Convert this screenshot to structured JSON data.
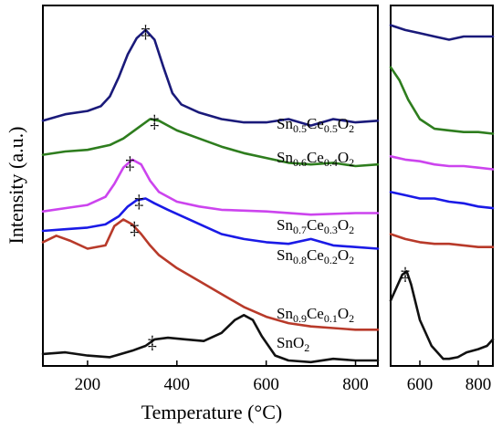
{
  "chart_data": [
    {
      "type": "line",
      "xlabel": "Temperature (°C)",
      "ylabel": "Intensity (a.u.)",
      "xlim": [
        100,
        850
      ],
      "xticks": [
        "200",
        "400",
        "600",
        "800"
      ],
      "y_ticks_shown": false,
      "marker_symbol": "‡",
      "series": [
        {
          "label_parts": [
            "Sn",
            "0.5",
            "Ce",
            "0.5",
            "O",
            "2"
          ],
          "color": "#1a1a7a",
          "x": [
            100,
            150,
            200,
            230,
            250,
            270,
            290,
            310,
            330,
            350,
            370,
            390,
            410,
            450,
            500,
            550,
            600,
            650,
            700,
            750,
            800,
            850
          ],
          "y": [
            0.695,
            0.715,
            0.725,
            0.74,
            0.77,
            0.83,
            0.9,
            0.95,
            0.975,
            0.945,
            0.86,
            0.78,
            0.745,
            0.72,
            0.7,
            0.69,
            0.69,
            0.7,
            0.68,
            0.7,
            0.69,
            0.695
          ],
          "markers": [
            330
          ]
        },
        {
          "label_parts": [
            "Sn",
            "0.6",
            "Ce",
            "0.4",
            "O",
            "2"
          ],
          "color": "#2e7d1e",
          "x": [
            100,
            150,
            200,
            250,
            280,
            300,
            320,
            340,
            360,
            380,
            400,
            450,
            500,
            550,
            600,
            650,
            700,
            750,
            800,
            850
          ],
          "y": [
            0.59,
            0.6,
            0.605,
            0.62,
            0.64,
            0.66,
            0.68,
            0.7,
            0.695,
            0.68,
            0.665,
            0.64,
            0.615,
            0.595,
            0.58,
            0.565,
            0.56,
            0.565,
            0.555,
            0.56
          ],
          "markers": [
            350
          ]
        },
        {
          "label_parts": [
            "Sn",
            "0.7",
            "Ce",
            "0.3",
            "O",
            "2"
          ],
          "color": "#cc44ee",
          "x": [
            100,
            150,
            200,
            240,
            260,
            280,
            300,
            320,
            340,
            360,
            400,
            450,
            500,
            600,
            700,
            800,
            850
          ],
          "y": [
            0.415,
            0.425,
            0.435,
            0.46,
            0.5,
            0.55,
            0.575,
            0.56,
            0.51,
            0.475,
            0.445,
            0.43,
            0.42,
            0.415,
            0.405,
            0.41,
            0.41
          ],
          "markers": [
            295
          ]
        },
        {
          "label_parts": [
            "Sn",
            "0.8",
            "Ce",
            "0.2",
            "O",
            "2"
          ],
          "color": "#1a1ae6",
          "x": [
            100,
            150,
            200,
            240,
            270,
            290,
            310,
            330,
            350,
            380,
            420,
            460,
            500,
            550,
            600,
            650,
            700,
            750,
            800,
            850
          ],
          "y": [
            0.355,
            0.36,
            0.365,
            0.375,
            0.4,
            0.43,
            0.45,
            0.455,
            0.44,
            0.42,
            0.395,
            0.37,
            0.345,
            0.33,
            0.32,
            0.315,
            0.33,
            0.31,
            0.305,
            0.3
          ],
          "markers": [
            315
          ]
        },
        {
          "label_parts": [
            "Sn",
            "0.9",
            "Ce",
            "0.1",
            "O",
            "2"
          ],
          "color": "#b83a2a",
          "x": [
            100,
            130,
            160,
            200,
            240,
            260,
            280,
            300,
            320,
            340,
            360,
            400,
            450,
            500,
            550,
            600,
            650,
            700,
            750,
            800,
            850
          ],
          "y": [
            0.32,
            0.34,
            0.325,
            0.3,
            0.31,
            0.37,
            0.39,
            0.375,
            0.345,
            0.31,
            0.28,
            0.24,
            0.2,
            0.16,
            0.12,
            0.09,
            0.07,
            0.06,
            0.055,
            0.05,
            0.05
          ],
          "markers": [
            305
          ]
        },
        {
          "label_parts": [
            "SnO",
            "2"
          ],
          "color": "#111111",
          "x": [
            100,
            150,
            200,
            250,
            300,
            330,
            350,
            380,
            420,
            460,
            500,
            530,
            550,
            570,
            590,
            620,
            650,
            700,
            750,
            800,
            850
          ],
          "y": [
            -0.025,
            -0.02,
            -0.03,
            -0.035,
            -0.015,
            0.0,
            0.02,
            0.025,
            0.02,
            0.015,
            0.04,
            0.08,
            0.095,
            0.08,
            0.03,
            -0.03,
            -0.045,
            -0.05,
            -0.04,
            -0.045,
            -0.045
          ],
          "markers": [
            345
          ]
        }
      ]
    },
    {
      "type": "line",
      "xlim": [
        500,
        850
      ],
      "xticks": [
        "600",
        "800"
      ],
      "y_ticks_shown": false,
      "series": [
        {
          "color": "#1a1a7a",
          "x": [
            500,
            550,
            600,
            650,
            700,
            750,
            800,
            850
          ],
          "y": [
            0.99,
            0.975,
            0.965,
            0.955,
            0.945,
            0.955,
            0.955,
            0.955
          ],
          "markers": []
        },
        {
          "color": "#2e7d1e",
          "x": [
            500,
            530,
            560,
            600,
            650,
            700,
            750,
            800,
            850
          ],
          "y": [
            0.86,
            0.82,
            0.76,
            0.7,
            0.67,
            0.665,
            0.66,
            0.66,
            0.655
          ],
          "markers": []
        },
        {
          "color": "#cc44ee",
          "x": [
            500,
            550,
            600,
            650,
            700,
            750,
            800,
            850
          ],
          "y": [
            0.585,
            0.575,
            0.57,
            0.56,
            0.555,
            0.555,
            0.55,
            0.545
          ],
          "markers": []
        },
        {
          "color": "#1a1ae6",
          "x": [
            500,
            550,
            600,
            650,
            700,
            750,
            800,
            850
          ],
          "y": [
            0.475,
            0.465,
            0.455,
            0.455,
            0.445,
            0.44,
            0.43,
            0.425
          ],
          "markers": []
        },
        {
          "color": "#b83a2a",
          "x": [
            500,
            550,
            600,
            650,
            700,
            750,
            800,
            850
          ],
          "y": [
            0.345,
            0.33,
            0.32,
            0.315,
            0.315,
            0.31,
            0.305,
            0.305
          ],
          "markers": []
        },
        {
          "color": "#111111",
          "x": [
            500,
            520,
            540,
            555,
            570,
            600,
            640,
            680,
            700,
            730,
            760,
            800,
            830,
            850
          ],
          "y": [
            0.14,
            0.18,
            0.22,
            0.23,
            0.19,
            0.08,
            0.0,
            -0.04,
            -0.04,
            -0.035,
            -0.02,
            -0.01,
            0.0,
            0.02
          ],
          "markers": [
            550
          ]
        }
      ]
    }
  ]
}
